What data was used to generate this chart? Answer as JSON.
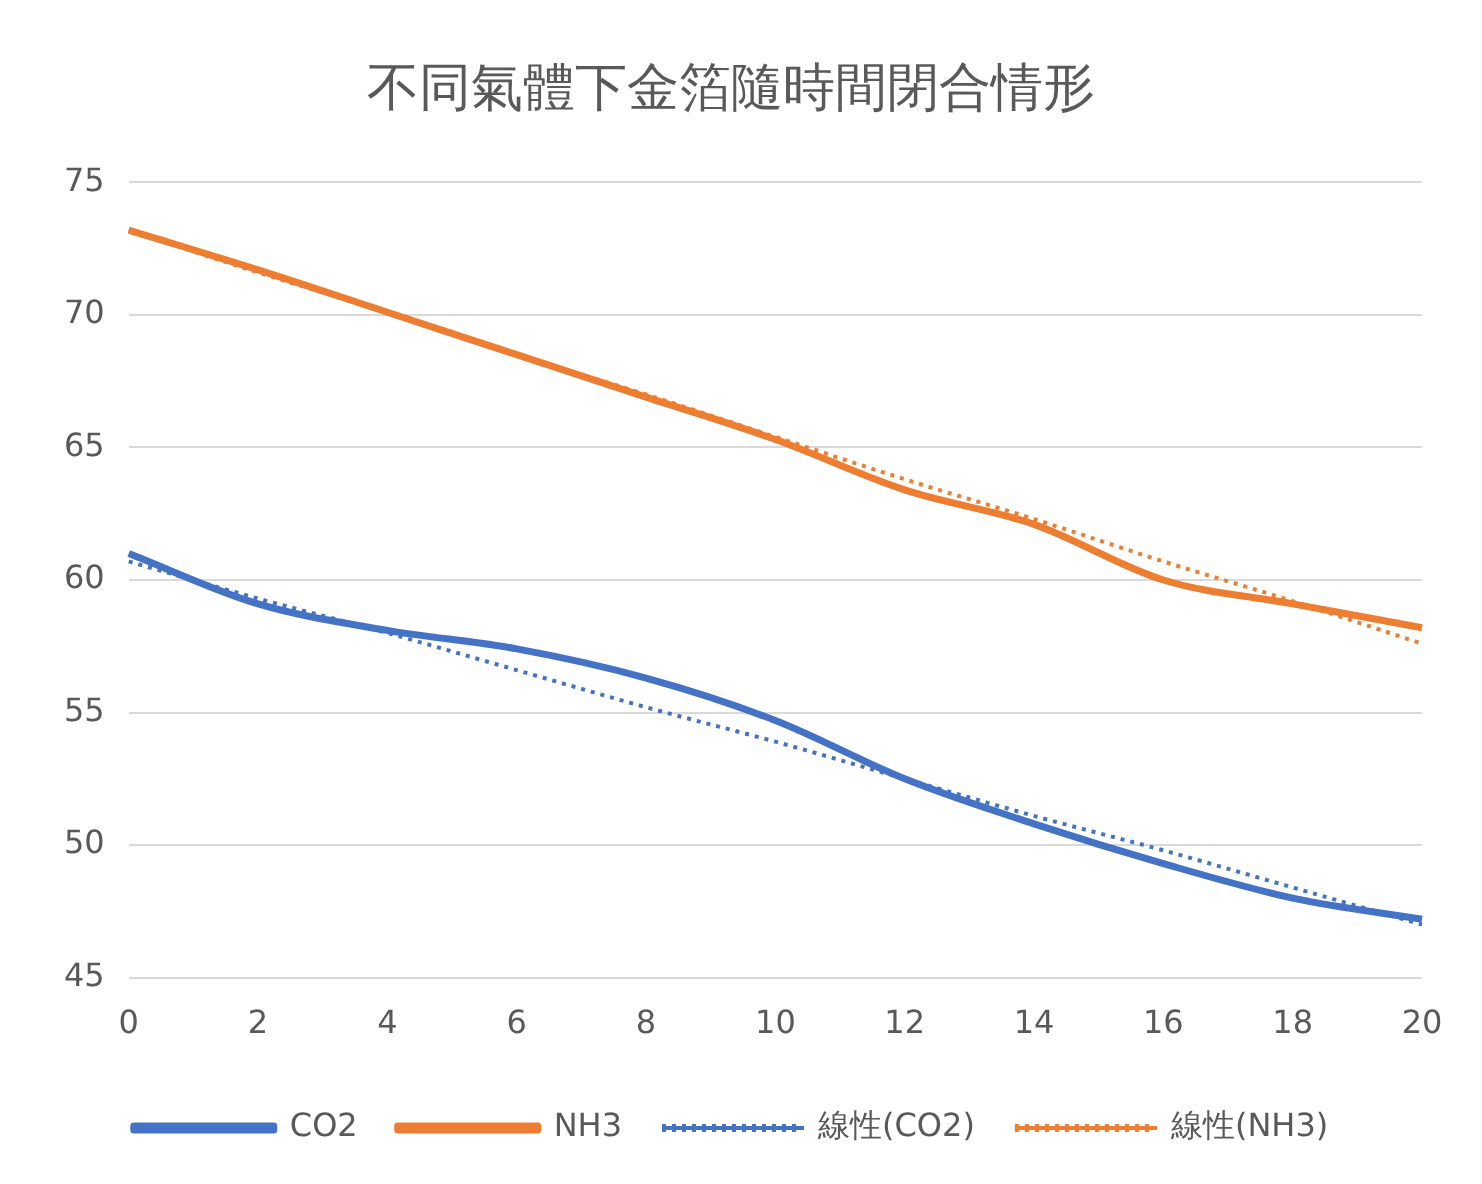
{
  "chart_data": {
    "type": "line",
    "title": "不同氣體下金箔隨時間閉合情形",
    "categories": [
      "0",
      "2",
      "4",
      "6",
      "8",
      "10",
      "12",
      "14",
      "16",
      "18",
      "20"
    ],
    "series": [
      {
        "name": "CO2",
        "color": "#4472c4",
        "line_style": "solid",
        "values": [
          61.0,
          59.1,
          58.1,
          57.4,
          56.3,
          54.7,
          52.5,
          50.8,
          49.3,
          48.0,
          47.2
        ]
      },
      {
        "name": "NH3",
        "color": "#ed7d31",
        "line_style": "solid",
        "values": [
          73.2,
          71.7,
          70.1,
          68.5,
          66.9,
          65.3,
          63.4,
          62.1,
          60.0,
          59.1,
          58.2
        ]
      },
      {
        "name": "線性(CO2)",
        "color": "#4472c4",
        "line_style": "dotted",
        "values": [
          60.7,
          59.3,
          58.0,
          56.6,
          55.2,
          53.9,
          52.5,
          51.1,
          49.8,
          48.4,
          47.0
        ]
      },
      {
        "name": "線性(NH3)",
        "color": "#ed7d31",
        "line_style": "dotted",
        "values": [
          73.2,
          71.6,
          70.1,
          68.5,
          67.0,
          65.4,
          63.8,
          62.3,
          60.7,
          59.2,
          57.6
        ]
      }
    ],
    "ylim": [
      45,
      75
    ],
    "yticks": [
      45,
      50,
      55,
      60,
      65,
      70,
      75
    ],
    "grid": "y",
    "legend": "bottom",
    "marker": "none"
  }
}
